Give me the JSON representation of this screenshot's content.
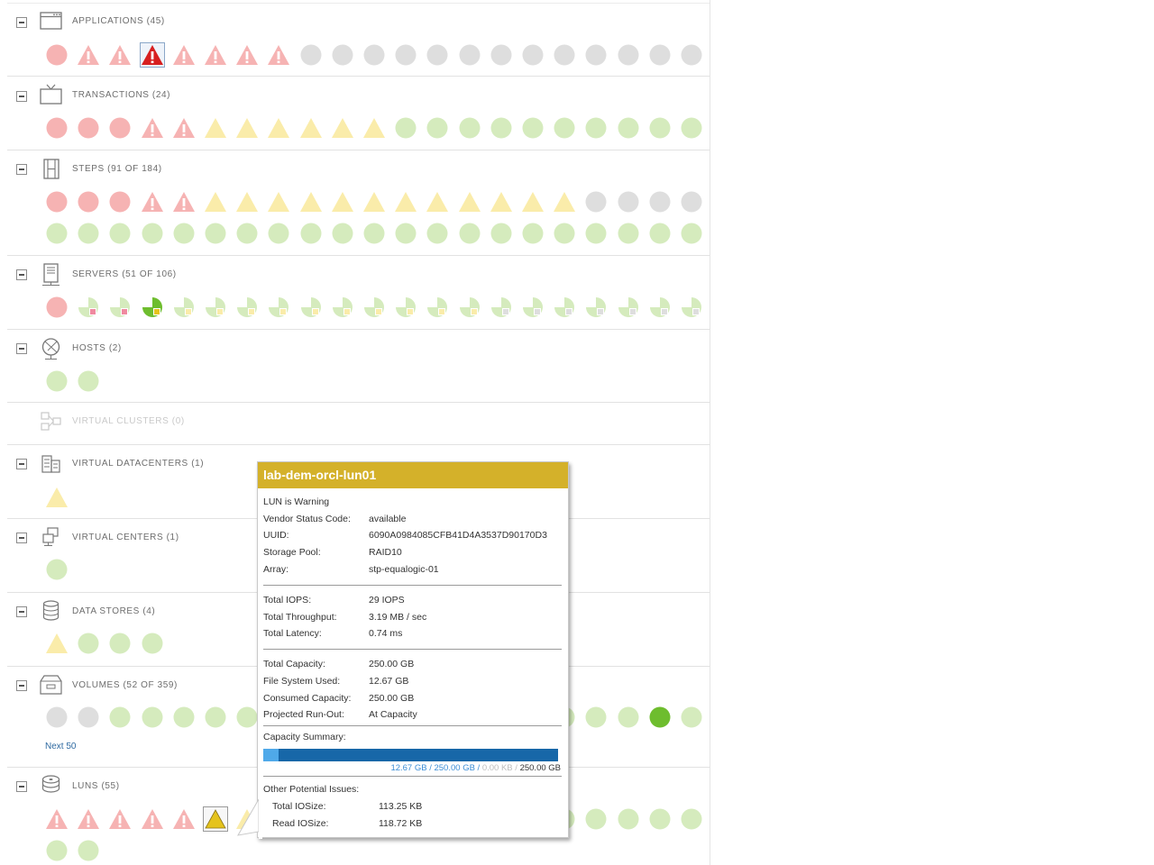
{
  "colors": {
    "critical_light": "#f6b3b3",
    "critical": "#d71f1f",
    "warning_light": "#faecaa",
    "warning": "#e5c31c",
    "normal_light": "#d5ebbd",
    "normal": "#6ebd2e",
    "unknown": "#dedede",
    "tooltip_header": "#d4b12a",
    "capacity_used": "#4fa9e9",
    "capacity_total": "#1767a8"
  },
  "sections": [
    {
      "name": "applications",
      "title": "APPLICATIONS (45)",
      "icon": "application-window-icon",
      "collapsible": true,
      "disabled": false,
      "rows": [
        [
          "cf",
          "tf",
          "tf",
          "tF",
          "tf",
          "tf",
          "tf",
          "tf",
          "g",
          "g",
          "g",
          "g",
          "g",
          "g",
          "g",
          "g",
          "g",
          "g",
          "g",
          "g",
          "g"
        ]
      ]
    },
    {
      "name": "transactions",
      "title": "TRANSACTIONS (24)",
      "icon": "tv-monitor-icon",
      "collapsible": true,
      "disabled": false,
      "rows": [
        [
          "cf",
          "cf",
          "cf",
          "tf",
          "tf",
          "wt",
          "wt",
          "wt",
          "wt",
          "wt",
          "wt",
          "n",
          "n",
          "n",
          "n",
          "n",
          "n",
          "n",
          "n",
          "n",
          "n"
        ]
      ]
    },
    {
      "name": "steps",
      "title": "STEPS (91 OF 184)",
      "icon": "film-strip-icon",
      "collapsible": true,
      "disabled": false,
      "rows": [
        [
          "cf",
          "cf",
          "cf",
          "tf",
          "tf",
          "wt",
          "wt",
          "wt",
          "wt",
          "wt",
          "wt",
          "wt",
          "wt",
          "wt",
          "wt",
          "wt",
          "wt",
          "g",
          "g",
          "g",
          "g"
        ],
        [
          "n",
          "n",
          "n",
          "n",
          "n",
          "n",
          "n",
          "n",
          "n",
          "n",
          "n",
          "n",
          "n",
          "n",
          "n",
          "n",
          "n",
          "n",
          "n",
          "n",
          "n"
        ]
      ]
    },
    {
      "name": "servers",
      "title": "SERVERS (51 OF 106)",
      "icon": "server-tower-icon",
      "collapsible": true,
      "disabled": false,
      "rows": [
        [
          "cf",
          "pr",
          "pr",
          "py",
          "pw",
          "pw",
          "pw",
          "pw",
          "pw",
          "pw",
          "pw",
          "pw",
          "pw",
          "pw",
          "pg",
          "pg",
          "pg",
          "pg",
          "pg",
          "pg",
          "pg"
        ]
      ]
    },
    {
      "name": "hosts",
      "title": "HOSTS (2)",
      "icon": "globe-host-icon",
      "collapsible": true,
      "disabled": false,
      "rows": [
        [
          "n",
          "n"
        ]
      ]
    },
    {
      "name": "virtual-clusters",
      "title": "VIRTUAL CLUSTERS (0)",
      "icon": "cluster-nodes-icon",
      "collapsible": false,
      "disabled": true,
      "rows": []
    },
    {
      "name": "virtual-datacenters",
      "title": "VIRTUAL DATACENTERS (1)",
      "icon": "datacenter-building-icon",
      "collapsible": true,
      "disabled": false,
      "rows": [
        [
          "wt"
        ]
      ]
    },
    {
      "name": "virtual-centers",
      "title": "VIRTUAL CENTERS (1)",
      "icon": "virtual-center-icon",
      "collapsible": true,
      "disabled": false,
      "rows": [
        [
          "n"
        ]
      ]
    },
    {
      "name": "data-stores",
      "title": "DATA STORES (4)",
      "icon": "database-cylinder-icon",
      "collapsible": true,
      "disabled": false,
      "rows": [
        [
          "wt",
          "n",
          "n",
          "n"
        ]
      ]
    },
    {
      "name": "volumes",
      "title": "VOLUMES (52 OF 359)",
      "icon": "volume-box-icon",
      "collapsible": true,
      "disabled": false,
      "rows": [
        [
          "g",
          "g",
          "n",
          "n",
          "n",
          "n",
          "n",
          "n",
          "n",
          "n",
          "n",
          "n",
          "n",
          "n",
          "n",
          "n",
          "n",
          "n",
          "n",
          "N",
          "n"
        ]
      ],
      "next_label": "Next 50"
    },
    {
      "name": "luns",
      "title": "LUNS (55)",
      "icon": "disk-stack-icon",
      "collapsible": true,
      "disabled": false,
      "rows": [
        [
          "tf",
          "tf",
          "tf",
          "tf",
          "tf",
          "WT",
          "wt",
          "n",
          "n",
          "n",
          "n",
          "n",
          "n",
          "n",
          "n",
          "n",
          "n",
          "n",
          "n",
          "n",
          "n"
        ],
        [
          "n",
          "n"
        ]
      ]
    }
  ],
  "tooltip": {
    "title": "lab-dem-orcl-lun01",
    "status_text": "LUN is Warning",
    "details": [
      {
        "label": "Vendor Status Code:",
        "value": "available"
      },
      {
        "label": "UUID:",
        "value": "6090A0984085CFB41D4A3537D90170D3"
      },
      {
        "label": "Storage Pool:",
        "value": "RAID10"
      },
      {
        "label": "Array:",
        "value": "stp-equalogic-01"
      }
    ],
    "performance": [
      {
        "label": "Total IOPS:",
        "value": "29 IOPS"
      },
      {
        "label": "Total Throughput:",
        "value": "3.19 MB / sec"
      },
      {
        "label": "Total Latency:",
        "value": "0.74 ms"
      }
    ],
    "capacity": [
      {
        "label": "Total Capacity:",
        "value": "250.00 GB"
      },
      {
        "label": "File System Used:",
        "value": "12.67 GB"
      },
      {
        "label": "Consumed Capacity:",
        "value": "250.00 GB"
      },
      {
        "label": "Projected Run-Out:",
        "value": "At Capacity"
      }
    ],
    "capacity_summary_label": "Capacity Summary:",
    "capacity_used_fraction": 0.0507,
    "capacity_legend": {
      "used": "12.67 GB / 250.00 GB /",
      "free": "0.00 KB /",
      "total": "250.00 GB"
    },
    "other_issues_label": "Other Potential Issues:",
    "other_issues": [
      {
        "label": "Total IOSize:",
        "value": "113.25 KB"
      },
      {
        "label": "Read IOSize:",
        "value": "118.72 KB"
      }
    ]
  }
}
